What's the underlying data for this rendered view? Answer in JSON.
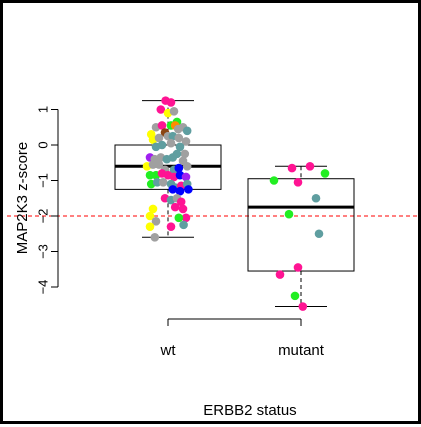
{
  "chart_data": {
    "type": "boxplot",
    "xlabel": "ERBB2 status",
    "ylabel": "MAP2K3 z-score",
    "ylim": [
      -4.6,
      1.5
    ],
    "y_ticks": [
      1,
      0,
      -1,
      -2,
      -3,
      -4
    ],
    "y_tick_labels": [
      "1",
      "0",
      "−1",
      "−2",
      "−3",
      "−4"
    ],
    "categories": [
      "wt",
      "mutant"
    ],
    "reference_line": {
      "y": -2,
      "color": "#ff0000",
      "style": "dashed"
    },
    "boxes": [
      {
        "category": "wt",
        "whisker_low": -2.6,
        "q1": -1.25,
        "median": -0.6,
        "q3": 0.0,
        "whisker_high": 1.25
      },
      {
        "category": "mutant",
        "whisker_low": -4.55,
        "q1": -3.55,
        "median": -1.75,
        "q3": -0.95,
        "whisker_high": -0.6
      }
    ],
    "colors": {
      "pink": "#ff1493",
      "green": "#22ee22",
      "teal": "#5f9ea0",
      "gray": "#a0a0a0",
      "yellow": "#ffff00",
      "blue": "#0000ff",
      "purple": "#a020f0",
      "orange": "#ff8c00",
      "brown": "#8b4513"
    },
    "points": [
      {
        "g": 0,
        "dx": -0.04,
        "y": 1.25,
        "c": "pink"
      },
      {
        "g": 0,
        "dx": 0.05,
        "y": 1.2,
        "c": "pink"
      },
      {
        "g": 0,
        "dx": -0.12,
        "y": 1.0,
        "c": "pink"
      },
      {
        "g": 0,
        "dx": 0.0,
        "y": 0.9,
        "c": "yellow"
      },
      {
        "g": 0,
        "dx": 0.1,
        "y": 0.95,
        "c": "gray"
      },
      {
        "g": 0,
        "dx": 0.15,
        "y": 0.65,
        "c": "green"
      },
      {
        "g": 0,
        "dx": -0.2,
        "y": 0.5,
        "c": "gray"
      },
      {
        "g": 0,
        "dx": -0.1,
        "y": 0.55,
        "c": "pink"
      },
      {
        "g": 0,
        "dx": -0.05,
        "y": 0.35,
        "c": "brown"
      },
      {
        "g": 0,
        "dx": 0.05,
        "y": 0.55,
        "c": "green"
      },
      {
        "g": 0,
        "dx": 0.12,
        "y": 0.55,
        "c": "orange"
      },
      {
        "g": 0,
        "dx": 0.17,
        "y": 0.45,
        "c": "gray"
      },
      {
        "g": 0,
        "dx": 0.25,
        "y": 0.5,
        "c": "gray"
      },
      {
        "g": 0,
        "dx": 0.32,
        "y": 0.4,
        "c": "teal"
      },
      {
        "g": 0,
        "dx": -0.28,
        "y": 0.3,
        "c": "yellow"
      },
      {
        "g": 0,
        "dx": -0.25,
        "y": 0.15,
        "c": "yellow"
      },
      {
        "g": 0,
        "dx": -0.15,
        "y": 0.2,
        "c": "gray"
      },
      {
        "g": 0,
        "dx": 0.0,
        "y": 0.25,
        "c": "gray"
      },
      {
        "g": 0,
        "dx": 0.08,
        "y": 0.25,
        "c": "teal"
      },
      {
        "g": 0,
        "dx": 0.18,
        "y": 0.2,
        "c": "gray"
      },
      {
        "g": 0,
        "dx": 0.3,
        "y": 0.1,
        "c": "gray"
      },
      {
        "g": 0,
        "dx": -0.2,
        "y": -0.05,
        "c": "teal"
      },
      {
        "g": 0,
        "dx": -0.1,
        "y": 0.0,
        "c": "teal"
      },
      {
        "g": 0,
        "dx": 0.05,
        "y": 0.05,
        "c": "gray"
      },
      {
        "g": 0,
        "dx": 0.2,
        "y": -0.05,
        "c": "teal"
      },
      {
        "g": 0,
        "dx": 0.28,
        "y": -0.25,
        "c": "gray"
      },
      {
        "g": 0,
        "dx": -0.3,
        "y": -0.35,
        "c": "purple"
      },
      {
        "g": 0,
        "dx": -0.22,
        "y": -0.4,
        "c": "gray"
      },
      {
        "g": 0,
        "dx": -0.12,
        "y": -0.35,
        "c": "gray"
      },
      {
        "g": 0,
        "dx": -0.02,
        "y": -0.4,
        "c": "teal"
      },
      {
        "g": 0,
        "dx": 0.08,
        "y": -0.35,
        "c": "teal"
      },
      {
        "g": 0,
        "dx": 0.15,
        "y": -0.25,
        "c": "teal"
      },
      {
        "g": 0,
        "dx": 0.25,
        "y": -0.45,
        "c": "gray"
      },
      {
        "g": 0,
        "dx": -0.35,
        "y": -0.6,
        "c": "yellow"
      },
      {
        "g": 0,
        "dx": -0.25,
        "y": -0.55,
        "c": "gray"
      },
      {
        "g": 0,
        "dx": -0.15,
        "y": -0.55,
        "c": "gray"
      },
      {
        "g": 0,
        "dx": -0.05,
        "y": -0.7,
        "c": "gray"
      },
      {
        "g": 0,
        "dx": 0.1,
        "y": -0.7,
        "c": "teal"
      },
      {
        "g": 0,
        "dx": 0.18,
        "y": -0.65,
        "c": "blue"
      },
      {
        "g": 0,
        "dx": 0.32,
        "y": -0.6,
        "c": "gray"
      },
      {
        "g": 0,
        "dx": -0.3,
        "y": -0.85,
        "c": "green"
      },
      {
        "g": 0,
        "dx": -0.2,
        "y": -0.85,
        "c": "green"
      },
      {
        "g": 0,
        "dx": -0.1,
        "y": -0.8,
        "c": "pink"
      },
      {
        "g": 0,
        "dx": 0.0,
        "y": -0.85,
        "c": "pink"
      },
      {
        "g": 0,
        "dx": 0.1,
        "y": -0.9,
        "c": "pink"
      },
      {
        "g": 0,
        "dx": 0.2,
        "y": -0.85,
        "c": "blue"
      },
      {
        "g": 0,
        "dx": 0.3,
        "y": -0.9,
        "c": "purple"
      },
      {
        "g": 0,
        "dx": -0.28,
        "y": -1.1,
        "c": "green"
      },
      {
        "g": 0,
        "dx": -0.18,
        "y": -1.05,
        "c": "teal"
      },
      {
        "g": 0,
        "dx": -0.08,
        "y": -1.05,
        "c": "gray"
      },
      {
        "g": 0,
        "dx": 0.05,
        "y": -1.1,
        "c": "teal"
      },
      {
        "g": 0,
        "dx": 0.12,
        "y": -1.2,
        "c": "teal"
      },
      {
        "g": 0,
        "dx": 0.22,
        "y": -1.15,
        "c": "pink"
      },
      {
        "g": 0,
        "dx": 0.32,
        "y": -1.1,
        "c": "teal"
      },
      {
        "g": 0,
        "dx": 0.08,
        "y": -1.25,
        "c": "blue"
      },
      {
        "g": 0,
        "dx": 0.2,
        "y": -1.3,
        "c": "blue"
      },
      {
        "g": 0,
        "dx": 0.34,
        "y": -1.25,
        "c": "blue"
      },
      {
        "g": 0,
        "dx": -0.05,
        "y": -1.5,
        "c": "pink"
      },
      {
        "g": 0,
        "dx": 0.05,
        "y": -1.55,
        "c": "teal"
      },
      {
        "g": 0,
        "dx": 0.15,
        "y": -1.5,
        "c": "gray"
      },
      {
        "g": 0,
        "dx": 0.22,
        "y": -1.6,
        "c": "pink"
      },
      {
        "g": 0,
        "dx": -0.25,
        "y": -1.8,
        "c": "yellow"
      },
      {
        "g": 0,
        "dx": -0.3,
        "y": -2.0,
        "c": "yellow"
      },
      {
        "g": 0,
        "dx": 0.12,
        "y": -1.75,
        "c": "pink"
      },
      {
        "g": 0,
        "dx": 0.25,
        "y": -1.8,
        "c": "pink"
      },
      {
        "g": 0,
        "dx": 0.3,
        "y": -2.05,
        "c": "pink"
      },
      {
        "g": 0,
        "dx": -0.2,
        "y": -2.15,
        "c": "gray"
      },
      {
        "g": 0,
        "dx": 0.18,
        "y": -2.05,
        "c": "green"
      },
      {
        "g": 0,
        "dx": 0.26,
        "y": -2.25,
        "c": "teal"
      },
      {
        "g": 0,
        "dx": -0.3,
        "y": -2.3,
        "c": "yellow"
      },
      {
        "g": 0,
        "dx": 0.05,
        "y": -2.3,
        "c": "pink"
      },
      {
        "g": 0,
        "dx": -0.22,
        "y": -2.6,
        "c": "gray"
      },
      {
        "g": 1,
        "dx": -0.15,
        "y": -0.65,
        "c": "pink"
      },
      {
        "g": 1,
        "dx": 0.15,
        "y": -0.6,
        "c": "pink"
      },
      {
        "g": 1,
        "dx": 0.4,
        "y": -0.8,
        "c": "green"
      },
      {
        "g": 1,
        "dx": -0.45,
        "y": -1.0,
        "c": "green"
      },
      {
        "g": 1,
        "dx": -0.05,
        "y": -1.05,
        "c": "pink"
      },
      {
        "g": 1,
        "dx": 0.25,
        "y": -1.5,
        "c": "teal"
      },
      {
        "g": 1,
        "dx": -0.2,
        "y": -1.95,
        "c": "green"
      },
      {
        "g": 1,
        "dx": 0.3,
        "y": -2.5,
        "c": "teal"
      },
      {
        "g": 1,
        "dx": -0.35,
        "y": -3.65,
        "c": "pink"
      },
      {
        "g": 1,
        "dx": -0.05,
        "y": -3.45,
        "c": "pink"
      },
      {
        "g": 1,
        "dx": -0.1,
        "y": -4.25,
        "c": "green"
      },
      {
        "g": 1,
        "dx": 0.03,
        "y": -4.55,
        "c": "pink"
      }
    ]
  },
  "figure": {
    "title": "",
    "xlabel": "ERBB2 status",
    "ylabel": "MAP2K3 z-score"
  }
}
